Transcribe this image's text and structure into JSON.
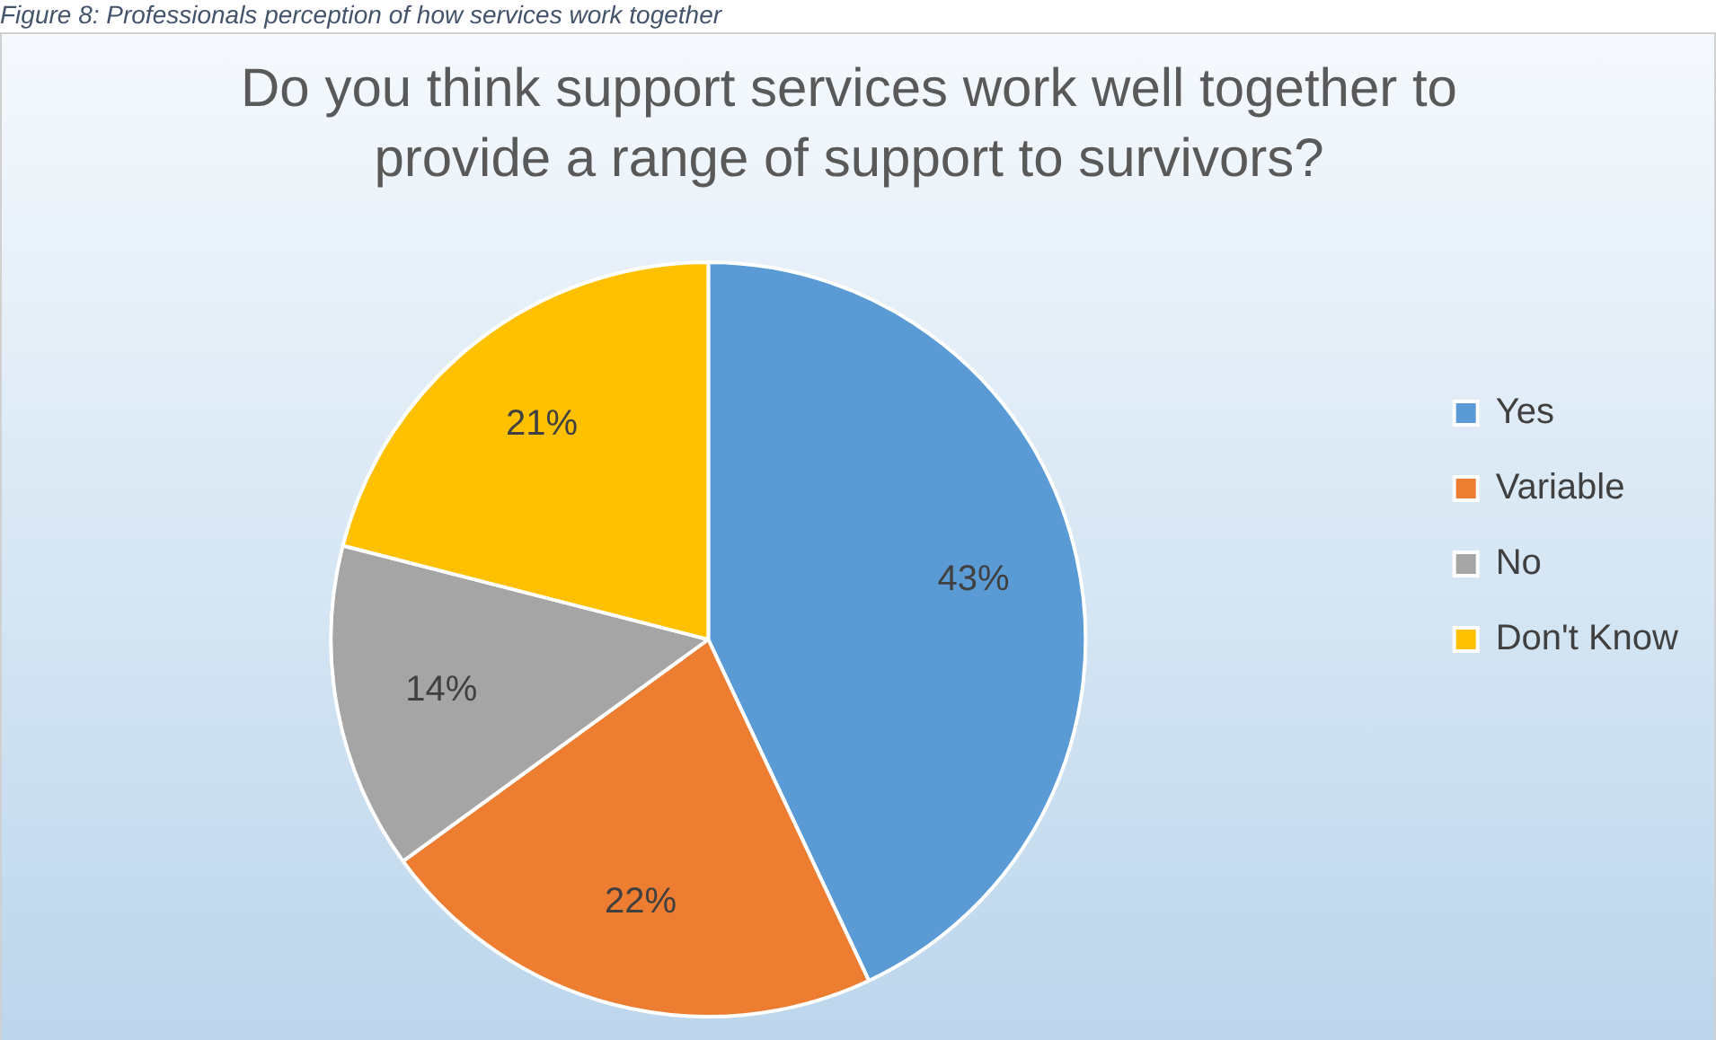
{
  "chart_data": {
    "type": "pie",
    "title": "Do you think support services work well together to provide a range of support to survivors?",
    "categories": [
      "Yes",
      "Variable",
      "No",
      "Don't Know"
    ],
    "values": [
      43,
      22,
      14,
      21
    ],
    "colors": [
      "#5b9bd5",
      "#ed7d31",
      "#a5a5a5",
      "#ffc000"
    ],
    "value_labels": [
      "43%",
      "22%",
      "14%",
      "21%"
    ],
    "legend": "right",
    "annotations": [
      "Figure 8: Professionals perception of how services work together"
    ]
  }
}
